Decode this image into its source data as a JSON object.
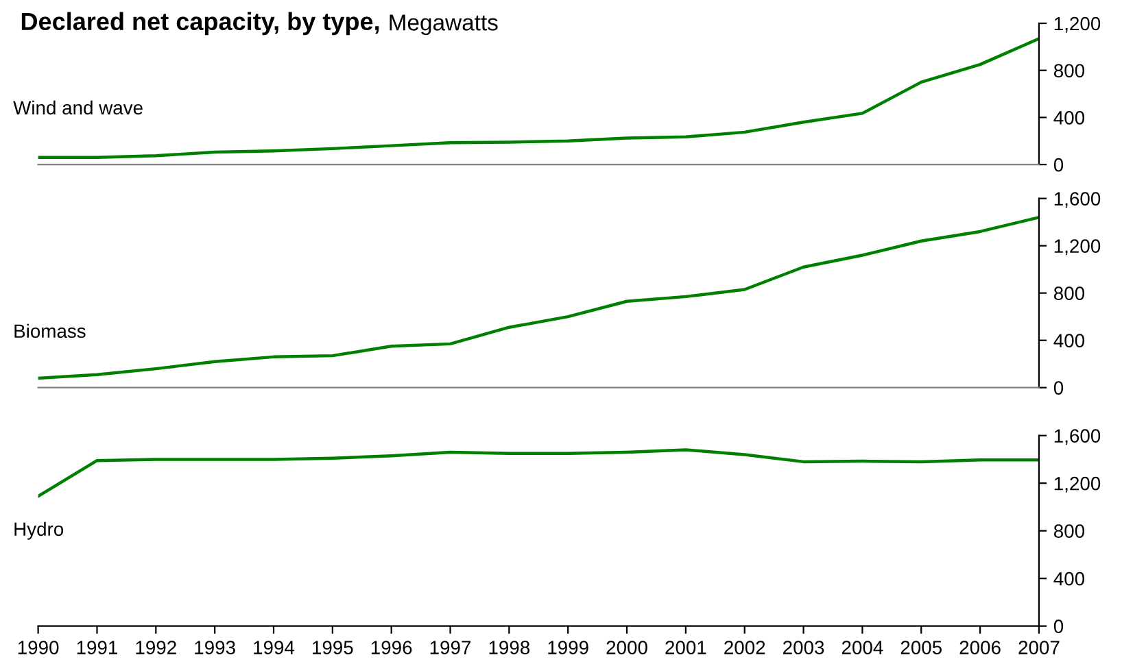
{
  "chart_data": [
    {
      "type": "line",
      "title": "Declared net capacity, by type,",
      "subtitle": "Megawatts",
      "categories": [
        "1990",
        "1991",
        "1992",
        "1993",
        "1994",
        "1995",
        "1996",
        "1997",
        "1998",
        "1999",
        "2000",
        "2001",
        "2002",
        "2003",
        "2004",
        "2005",
        "2006",
        "2007"
      ],
      "ylim": [
        0,
        1200
      ],
      "yticks": [
        0,
        {
          "value": 400,
          "label": "400"
        },
        {
          "value": 800,
          "label": "800"
        },
        {
          "value": 1200,
          "label": "1,200"
        }
      ],
      "tick_labels": "y",
      "grid": false,
      "legend": false,
      "series": [
        {
          "name": "Wind and wave",
          "color": "#008000",
          "values": [
            60,
            60,
            75,
            105,
            115,
            135,
            160,
            185,
            190,
            200,
            225,
            235,
            275,
            360,
            435,
            700,
            850,
            1070
          ]
        }
      ]
    },
    {
      "type": "line",
      "categories": [
        "1990",
        "1991",
        "1992",
        "1993",
        "1994",
        "1995",
        "1996",
        "1997",
        "1998",
        "1999",
        "2000",
        "2001",
        "2002",
        "2003",
        "2004",
        "2005",
        "2006",
        "2007"
      ],
      "ylim": [
        0,
        1600
      ],
      "yticks": [
        0,
        {
          "value": 400,
          "label": "400"
        },
        {
          "value": 800,
          "label": "800"
        },
        {
          "value": 1200,
          "label": "1,200"
        },
        {
          "value": 1600,
          "label": "1,600"
        }
      ],
      "tick_labels": "y",
      "grid": false,
      "legend": false,
      "series": [
        {
          "name": "Biomass",
          "color": "#008000",
          "values": [
            80,
            110,
            160,
            220,
            260,
            270,
            350,
            370,
            510,
            600,
            730,
            770,
            830,
            1020,
            1120,
            1240,
            1320,
            1440
          ]
        }
      ]
    },
    {
      "type": "line",
      "categories": [
        "1990",
        "1991",
        "1992",
        "1993",
        "1994",
        "1995",
        "1996",
        "1997",
        "1998",
        "1999",
        "2000",
        "2001",
        "2002",
        "2003",
        "2004",
        "2005",
        "2006",
        "2007"
      ],
      "ylim": [
        0,
        1600
      ],
      "yticks": [
        0,
        {
          "value": 400,
          "label": "400"
        },
        {
          "value": 800,
          "label": "800"
        },
        {
          "value": 1200,
          "label": "1,200"
        },
        {
          "value": 1600,
          "label": "1,600"
        }
      ],
      "grid": false,
      "legend": false,
      "series": [
        {
          "name": "Hydro",
          "color": "#008000",
          "values": [
            1090,
            1390,
            1400,
            1400,
            1400,
            1410,
            1430,
            1460,
            1450,
            1450,
            1460,
            1480,
            1440,
            1380,
            1385,
            1380,
            1395,
            1395
          ]
        }
      ]
    }
  ]
}
